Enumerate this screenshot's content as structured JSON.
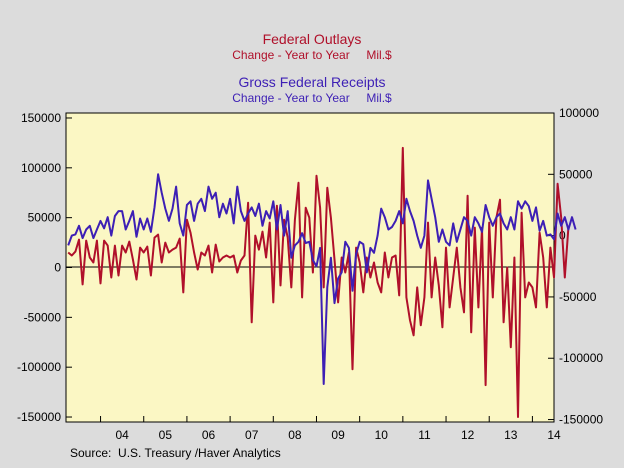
{
  "chart_data": {
    "type": "line",
    "titles": [
      {
        "title": "Federal Outlays",
        "subtitle": "Change - Year to Year     Mil.$",
        "color": "#b0102a"
      },
      {
        "title": "Gross Federal Receipts",
        "subtitle": "Change - Year to Year     Mil.$",
        "color": "#3d1fb5"
      }
    ],
    "source": "Source:  U.S. Treasury /Haver Analytics",
    "background": "#fbf7c4",
    "grid": false,
    "x_range": [
      2003.2,
      2014.5
    ],
    "x_tick_labels": [
      "04",
      "05",
      "06",
      "07",
      "08",
      "09",
      "10",
      "11",
      "12",
      "13",
      "14"
    ],
    "left_axis": {
      "range": [
        -155000,
        155000
      ],
      "ticks": [
        150000,
        100000,
        50000,
        0,
        -50000,
        -100000,
        -150000
      ],
      "tick_labels": [
        "150000",
        "100000",
        "50000",
        "0",
        "-50000",
        "-100000",
        "-150000"
      ]
    },
    "right_axis": {
      "range": [
        -152000,
        100000
      ],
      "ticks": [
        100000,
        50000,
        0,
        -50000,
        -100000,
        -150000
      ],
      "tick_labels": [
        "100000",
        "50000",
        "0",
        "-50000",
        "-100000",
        "-150000"
      ]
    },
    "series": [
      {
        "name": "Federal Outlays",
        "color": "#b0102a",
        "axis": "left",
        "x_start": 2003.25,
        "x_step": 0.08333,
        "values": [
          15000,
          12000,
          16000,
          28000,
          -17000,
          27000,
          10000,
          5000,
          27000,
          -16000,
          27000,
          22000,
          -10000,
          22000,
          -8000,
          22000,
          15000,
          26000,
          8000,
          -12000,
          20000,
          15000,
          21000,
          -8000,
          30000,
          33000,
          5000,
          25000,
          15000,
          18000,
          20000,
          29000,
          -25000,
          48000,
          35000,
          15000,
          -2000,
          15000,
          12000,
          22000,
          -5000,
          23000,
          6000,
          10000,
          12000,
          10000,
          12000,
          -5000,
          7000,
          12000,
          65000,
          -55000,
          32000,
          18000,
          36000,
          10000,
          45000,
          -35000,
          62000,
          -18000,
          48000,
          30000,
          -20000,
          48000,
          85000,
          -30000,
          60000,
          50000,
          -5000,
          92000,
          60000,
          -20000,
          80000,
          50000,
          8000,
          -35000,
          10000,
          -5000,
          15000,
          -102000,
          20000,
          5000,
          -25000,
          10000,
          -10000,
          5000,
          -15000,
          -25000,
          15000,
          -10000,
          10000,
          12000,
          -28000,
          120000,
          -30000,
          -53000,
          -68000,
          -20000,
          -58000,
          -30000,
          45000,
          -30000,
          10000,
          -18000,
          -60000,
          20000,
          -40000,
          -10000,
          20000,
          -20000,
          -45000,
          72000,
          -65000,
          40000,
          -40000,
          40000,
          -118000,
          45000,
          -30000,
          50000,
          68000,
          -55000,
          0,
          -80000,
          10000,
          -150000,
          55000,
          -30000,
          -15000,
          -20000,
          -40000,
          35000,
          10000,
          -40000,
          20000,
          -10000,
          84000,
          50000,
          -10000,
          40000
        ]
      },
      {
        "name": "Gross Federal Receipts",
        "color": "#3d1fb5",
        "axis": "right",
        "x_start": 2003.25,
        "x_step": 0.08333,
        "values": [
          -8000,
          0,
          1000,
          8000,
          -2000,
          5000,
          8000,
          -2000,
          5000,
          12000,
          6000,
          15000,
          0,
          16000,
          20000,
          20000,
          5000,
          12000,
          20000,
          -1000,
          14000,
          5000,
          14000,
          3000,
          23000,
          50000,
          35000,
          22000,
          12000,
          22000,
          40000,
          10000,
          0,
          25000,
          28000,
          12000,
          26000,
          30000,
          20000,
          40000,
          30000,
          35000,
          15000,
          26000,
          18000,
          30000,
          10000,
          40000,
          20000,
          12000,
          18000,
          23000,
          16000,
          26000,
          8000,
          20000,
          14000,
          28000,
          5000,
          25000,
          0,
          20000,
          -18000,
          -8000,
          -5000,
          2000,
          -6000,
          -5000,
          -20000,
          -25000,
          -10000,
          -121000,
          -42000,
          -18000,
          -55000,
          -35000,
          -30000,
          -5000,
          -10000,
          -45000,
          -15000,
          -5000,
          -7000,
          -30000,
          -10000,
          -14000,
          0,
          22000,
          15000,
          5000,
          7000,
          12000,
          20000,
          10000,
          30000,
          20000,
          12000,
          0,
          -10000,
          0,
          45000,
          30000,
          15000,
          -5000,
          5000,
          -5000,
          -8000,
          10000,
          -5000,
          5000,
          15000,
          12000,
          0,
          15000,
          10000,
          3000,
          25000,
          15000,
          8000,
          15000,
          18000,
          10000,
          5000,
          15000,
          5000,
          28000,
          22000,
          28000,
          24000,
          12000,
          23000,
          4000,
          12000,
          0,
          1000,
          -3000,
          18000,
          8000,
          15000,
          5000,
          15000,
          5000
        ]
      }
    ]
  }
}
